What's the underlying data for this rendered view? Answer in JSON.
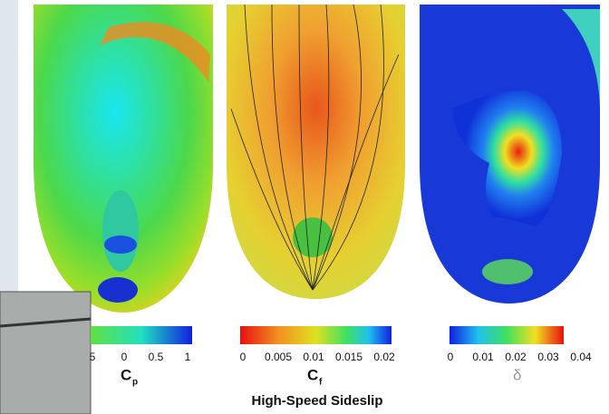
{
  "panels": [
    {
      "label": "C",
      "subscript": "p",
      "ticks": [
        "5",
        "0",
        "0.5",
        "1"
      ]
    },
    {
      "label": "C",
      "subscript": "f",
      "ticks": [
        "0",
        "0.005",
        "0.01",
        "0.015",
        "0.02"
      ]
    },
    {
      "label": "δ",
      "ticks": [
        "0",
        "0.01",
        "0.02",
        "0.03",
        "0.04"
      ]
    }
  ],
  "caption": "High-Speed Sideslip"
}
